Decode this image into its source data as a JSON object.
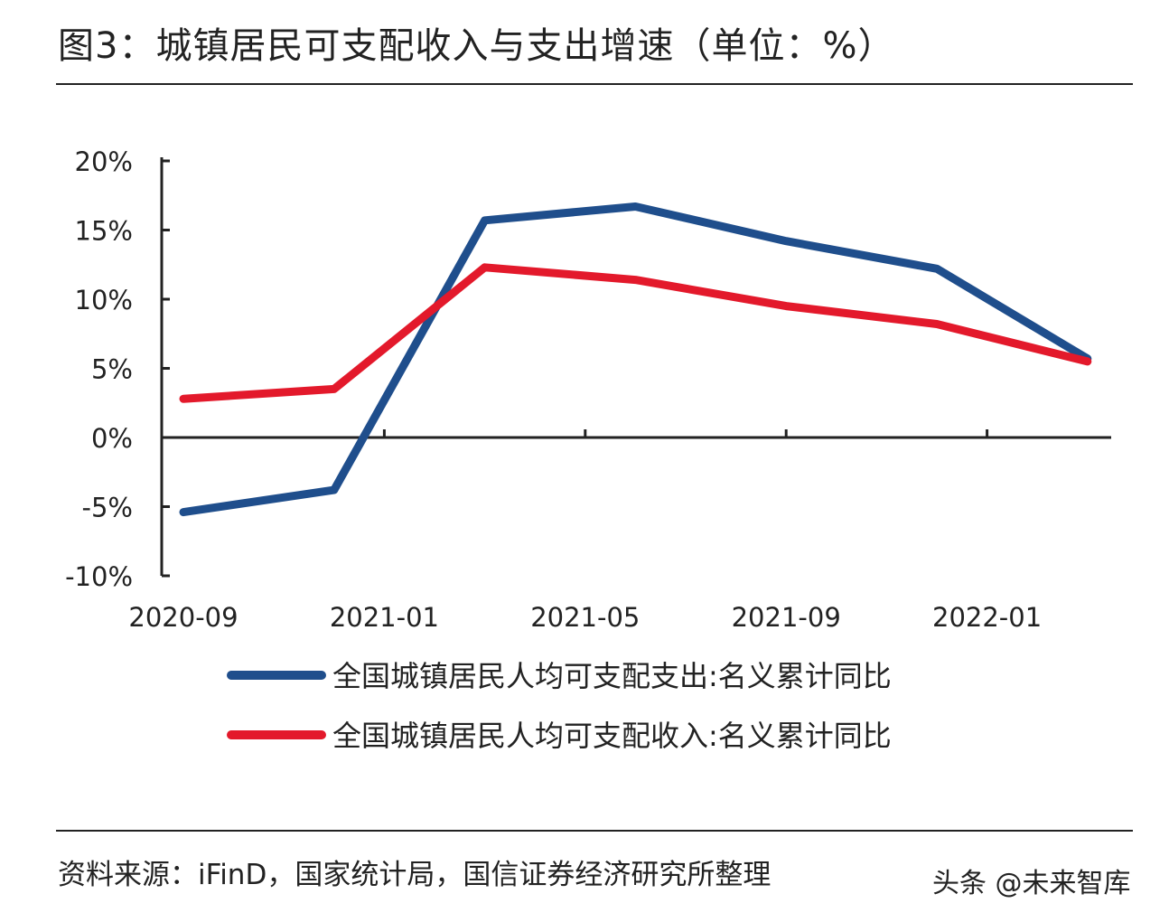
{
  "figure": {
    "title": "图3：城镇居民可支配收入与支出增速（单位：%）",
    "source": "资料来源：iFinD，国家统计局，国信证券经济研究所整理",
    "watermark": "头条 @未来智库"
  },
  "chart_data": {
    "type": "line",
    "x": [
      "2020-09",
      "2020-12",
      "2021-03",
      "2021-06",
      "2021-09",
      "2021-12",
      "2022-03"
    ],
    "x_tick_labels": [
      "2020-09",
      "2021-01",
      "2021-05",
      "2021-09",
      "2022-01"
    ],
    "y_tick_labels": [
      "20%",
      "15%",
      "10%",
      "5%",
      "0%",
      "-5%",
      "-10%"
    ],
    "ylim": [
      -10,
      20
    ],
    "grid": false,
    "legend_position": "bottom",
    "series": [
      {
        "name": "全国城镇居民人均可支配支出:名义累计同比",
        "color": "#1f4e8c",
        "values": [
          -5.4,
          -3.8,
          15.7,
          16.7,
          14.2,
          12.2,
          5.7
        ]
      },
      {
        "name": "全国城镇居民人均可支配收入:名义累计同比",
        "color": "#e3192b",
        "values": [
          2.8,
          3.5,
          12.3,
          11.4,
          9.5,
          8.2,
          5.5
        ]
      }
    ]
  }
}
